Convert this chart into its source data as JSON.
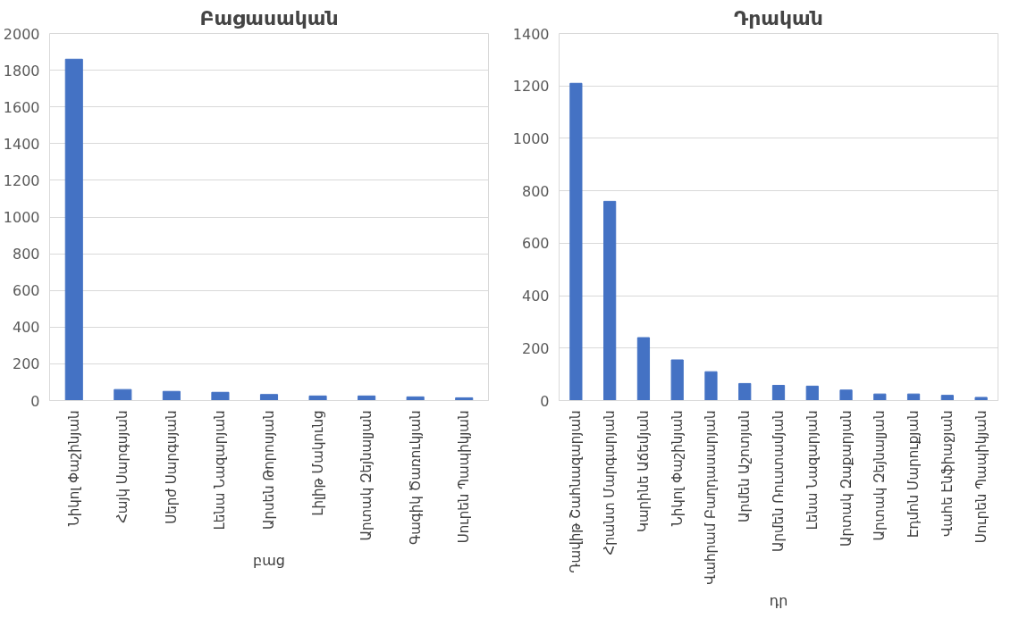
{
  "chart_data": [
    {
      "type": "bar",
      "title": "Բացասական",
      "xlabel": "բաց",
      "categories": [
        "Նիկոլ Փաշինյան",
        "Հայկ Սարգսյան",
        "Սերժ Սարգսյան",
        "Լենա Նազարյան",
        "Արսեն Թորոսյան",
        "Լիլիթ Մակունց",
        "Արտակ Զեյնալյան",
        "Գագիկ Ծառուկյան",
        "Սուրեն Պապիկյան"
      ],
      "values": [
        1860,
        60,
        50,
        45,
        33,
        25,
        25,
        20,
        15
      ],
      "color": "#4472c4",
      "ylim": [
        0,
        2000
      ],
      "yticks": [
        0,
        200,
        400,
        600,
        800,
        1000,
        1200,
        1400,
        1600,
        1800,
        2000
      ],
      "grid": "y"
    },
    {
      "type": "bar",
      "title": "Դրական",
      "xlabel": "դր",
      "categories": [
        "Դավիթ Շահնազարյան",
        "Հրանտ Մարգարյան",
        "Կարինե Աճեմյան",
        "Նիկոլ Փաշինյան",
        "Վահրամ Բաղդասարյան",
        "Արմեն Աշոտյան",
        "Արմեն Ռուստամյան",
        "Լենա Նազարյան",
        "Արտակ Զաքարյան",
        "Արտակ Զեյնալյան",
        "Էդմոն Մարուքյան",
        "Վահե Էնֆիաջյան",
        "Սուրեն Պապիկյան"
      ],
      "values": [
        1210,
        760,
        240,
        155,
        110,
        65,
        58,
        55,
        40,
        25,
        25,
        20,
        12
      ],
      "color": "#4472c4",
      "ylim": [
        0,
        1400
      ],
      "yticks": [
        0,
        200,
        400,
        600,
        800,
        1000,
        1200,
        1400
      ],
      "grid": "y"
    }
  ]
}
